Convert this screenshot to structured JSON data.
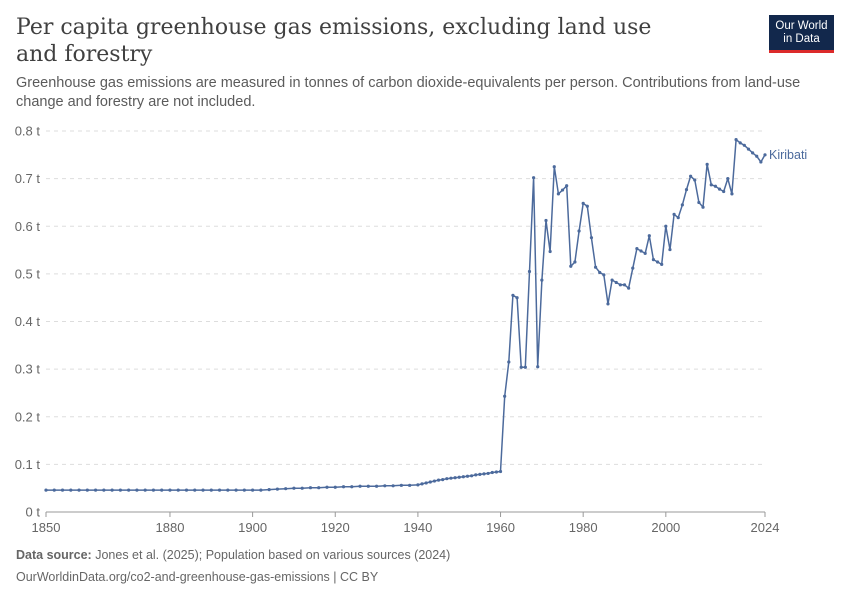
{
  "header": {
    "title": "Per capita greenhouse gas emissions, excluding land use and forestry",
    "subtitle": "Greenhouse gas emissions are measured in tonnes of carbon dioxide-equivalents per person. Contributions from land-use change and forestry are not included.",
    "logo_line1": "Our World",
    "logo_line2": "in Data"
  },
  "footer": {
    "source_label": "Data source:",
    "source_text": "Jones et al. (2025); Population based on various sources (2024)",
    "url_text": "OurWorldinData.org/co2-and-greenhouse-gas-emissions | CC BY"
  },
  "colors": {
    "series": "#4c6a9c",
    "grid": "#dddddd",
    "logo_bg": "#12284c",
    "logo_accent": "#dc2a2a"
  },
  "chart_data": {
    "type": "line",
    "xlim": [
      1850,
      2024
    ],
    "ylim": [
      0,
      0.8
    ],
    "x_ticks": [
      1850,
      1880,
      1900,
      1920,
      1940,
      1960,
      1980,
      2000,
      2024
    ],
    "y_ticks": [
      0,
      0.1,
      0.2,
      0.3,
      0.4,
      0.5,
      0.6,
      0.7,
      0.8
    ],
    "y_tick_labels": [
      "0 t",
      "0.1 t",
      "0.2 t",
      "0.3 t",
      "0.4 t",
      "0.5 t",
      "0.6 t",
      "0.7 t",
      "0.8 t"
    ],
    "grid": "horizontal dashed",
    "series": [
      {
        "name": "Kiribati",
        "x": [
          1850,
          1852,
          1854,
          1856,
          1858,
          1860,
          1862,
          1864,
          1866,
          1868,
          1870,
          1872,
          1874,
          1876,
          1878,
          1880,
          1882,
          1884,
          1886,
          1888,
          1890,
          1892,
          1894,
          1896,
          1898,
          1900,
          1902,
          1904,
          1906,
          1908,
          1910,
          1912,
          1914,
          1916,
          1918,
          1920,
          1922,
          1924,
          1926,
          1928,
          1930,
          1932,
          1934,
          1936,
          1938,
          1940,
          1941,
          1942,
          1943,
          1944,
          1945,
          1946,
          1947,
          1948,
          1949,
          1950,
          1951,
          1952,
          1953,
          1954,
          1955,
          1956,
          1957,
          1958,
          1959,
          1960,
          1961,
          1962,
          1963,
          1964,
          1965,
          1966,
          1967,
          1968,
          1969,
          1970,
          1971,
          1972,
          1973,
          1974,
          1975,
          1976,
          1977,
          1978,
          1979,
          1980,
          1981,
          1982,
          1983,
          1984,
          1985,
          1986,
          1987,
          1988,
          1989,
          1990,
          1991,
          1992,
          1993,
          1994,
          1995,
          1996,
          1997,
          1998,
          1999,
          2000,
          2001,
          2002,
          2003,
          2004,
          2005,
          2006,
          2007,
          2008,
          2009,
          2010,
          2011,
          2012,
          2013,
          2014,
          2015,
          2016,
          2017,
          2018,
          2019,
          2020,
          2021,
          2022,
          2023,
          2024
        ],
        "y": [
          0.046,
          0.046,
          0.046,
          0.046,
          0.046,
          0.046,
          0.046,
          0.046,
          0.046,
          0.046,
          0.046,
          0.046,
          0.046,
          0.046,
          0.046,
          0.046,
          0.046,
          0.046,
          0.046,
          0.046,
          0.046,
          0.046,
          0.046,
          0.046,
          0.046,
          0.046,
          0.046,
          0.047,
          0.048,
          0.049,
          0.05,
          0.05,
          0.051,
          0.051,
          0.052,
          0.052,
          0.053,
          0.053,
          0.054,
          0.054,
          0.054,
          0.055,
          0.055,
          0.056,
          0.056,
          0.057,
          0.059,
          0.061,
          0.063,
          0.065,
          0.067,
          0.068,
          0.07,
          0.071,
          0.072,
          0.073,
          0.074,
          0.075,
          0.076,
          0.078,
          0.079,
          0.08,
          0.081,
          0.083,
          0.084,
          0.085,
          0.243,
          0.315,
          0.455,
          0.45,
          0.304,
          0.304,
          0.505,
          0.702,
          0.305,
          0.487,
          0.612,
          0.547,
          0.725,
          0.668,
          0.676,
          0.685,
          0.516,
          0.525,
          0.59,
          0.648,
          0.642,
          0.576,
          0.514,
          0.503,
          0.498,
          0.437,
          0.487,
          0.482,
          0.477,
          0.477,
          0.47,
          0.512,
          0.553,
          0.548,
          0.543,
          0.58,
          0.53,
          0.525,
          0.52,
          0.6,
          0.551,
          0.625,
          0.618,
          0.645,
          0.677,
          0.705,
          0.697,
          0.65,
          0.64,
          0.73,
          0.687,
          0.684,
          0.678,
          0.673,
          0.7,
          0.668,
          0.782,
          0.775,
          0.77,
          0.762,
          0.754,
          0.747,
          0.735,
          0.75
        ]
      }
    ]
  }
}
